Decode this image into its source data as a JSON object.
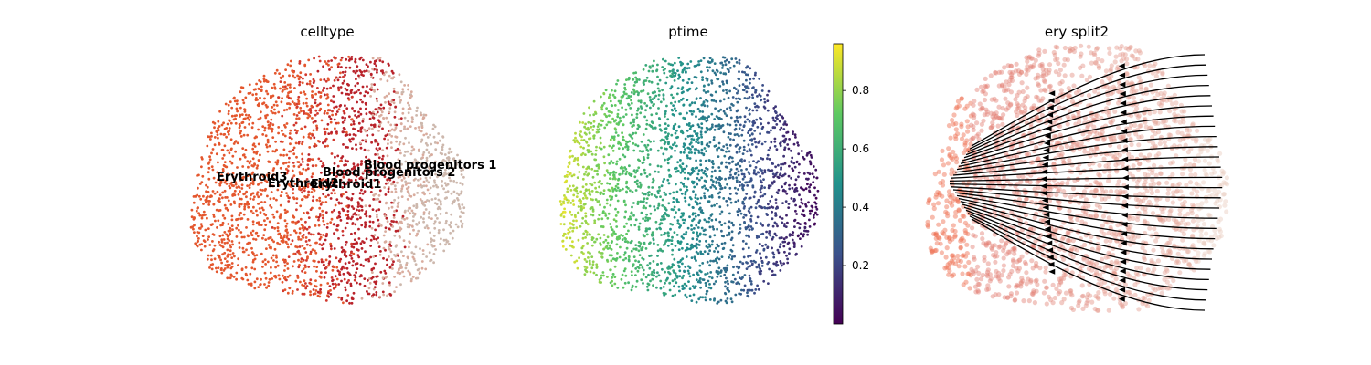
{
  "chart_data": [
    {
      "type": "scatter",
      "title": "celltype",
      "color_by": "celltype",
      "categories": [
        {
          "name": "Erythroid3",
          "color": "#e4572e"
        },
        {
          "name": "Erythroid2",
          "color": "#d2392f"
        },
        {
          "name": "Erythroid1",
          "color": "#b9222a"
        },
        {
          "name": "Blood progenitors 2",
          "color": "#d9ac9e"
        },
        {
          "name": "Blood progenitors 1",
          "color": "#cdb8ad"
        }
      ],
      "on_data_labels": true,
      "axes": "off"
    },
    {
      "type": "scatter",
      "title": "ptime",
      "color_by": "ptime",
      "colormap": "viridis",
      "colorbar": {
        "range": [
          0.0,
          0.96
        ],
        "ticks": [
          0.2,
          0.4,
          0.6,
          0.8
        ],
        "tick_labels": [
          "0.2",
          "0.4",
          "0.6",
          "0.8"
        ]
      },
      "axes": "off"
    },
    {
      "type": "scatter",
      "title": "ery split2",
      "overlay": "streamlines",
      "stream_color": "#000000",
      "colors": [
        "#ee6a4c",
        "#e27f73",
        "#e8cdbf"
      ],
      "axes": "off"
    }
  ]
}
